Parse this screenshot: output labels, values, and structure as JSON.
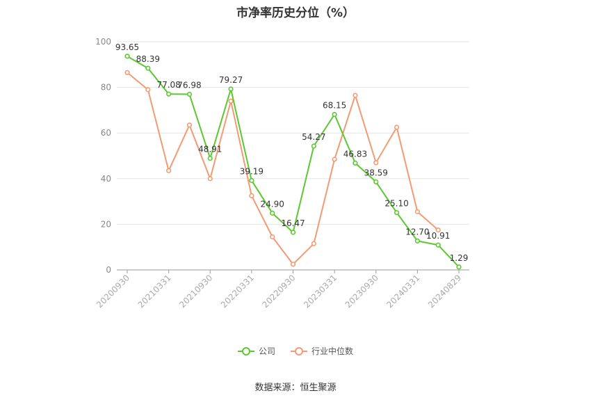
{
  "chart_data": {
    "type": "line",
    "title": "市净率历史分位（%）",
    "ylim": [
      0,
      100
    ],
    "yticks": [
      0,
      20,
      40,
      60,
      80,
      100
    ],
    "grid": true,
    "legend_position": "bottom",
    "x_tick_labels": [
      "20200930",
      "20210331",
      "20210930",
      "20220331",
      "20220930",
      "20230331",
      "20230930",
      "20240331",
      "20240829"
    ],
    "x": [
      "20200930",
      "20201231",
      "20210331",
      "20210630",
      "20210930",
      "20211231",
      "20220331",
      "20220630",
      "20220930",
      "20221231",
      "20230331",
      "20230630",
      "20230930",
      "20231231",
      "20240331",
      "20240630",
      "20240829"
    ],
    "series": [
      {
        "name": "公司",
        "color": "#5cc72f",
        "values": [
          93.65,
          88.39,
          77.08,
          76.98,
          48.91,
          79.27,
          39.19,
          24.9,
          16.47,
          54.27,
          68.15,
          46.83,
          38.59,
          25.1,
          12.7,
          10.91,
          1.29
        ],
        "labels": [
          "93.65",
          "88.39",
          "77.08",
          "76.98",
          "48.91",
          "79.27",
          "39.19",
          "24.90",
          "16.47",
          "54.27",
          "68.15",
          "46.83",
          "38.59",
          "25.10",
          "12.70",
          "10.91",
          "1.29"
        ]
      },
      {
        "name": "行业中位数",
        "color": "#f49a73",
        "values": [
          86.5,
          79,
          43.5,
          63.5,
          40,
          74,
          32.5,
          14.5,
          2.5,
          11.5,
          48.5,
          76.5,
          47,
          62.5,
          25.5,
          17.5,
          null
        ]
      }
    ]
  },
  "source": "数据来源：恒生聚源"
}
